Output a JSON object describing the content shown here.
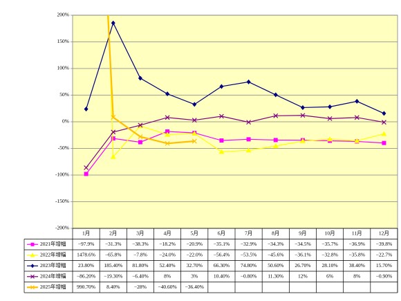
{
  "chart_data": {
    "type": "line",
    "categories": [
      "1月",
      "2月",
      "3月",
      "4月",
      "5月",
      "6月",
      "7月",
      "8月",
      "9月",
      "10月",
      "11月",
      "12月"
    ],
    "ylim": [
      -200,
      200
    ],
    "yticks": [
      {
        "value": -200,
        "label": "-200%"
      },
      {
        "value": -150,
        "label": "-150%"
      },
      {
        "value": -100,
        "label": "-100%"
      },
      {
        "value": -50,
        "label": "-50%"
      },
      {
        "value": 0,
        "label": "0%"
      },
      {
        "value": 50,
        "label": "50%"
      },
      {
        "value": 100,
        "label": "100%"
      },
      {
        "value": 150,
        "label": "150%"
      },
      {
        "value": 200,
        "label": "200%"
      }
    ],
    "grid": true,
    "series": [
      {
        "name": "2021年增幅",
        "color": "#ff00ff",
        "marker": "square",
        "values": [
          -97.9,
          -31.3,
          -38.3,
          -18.2,
          -20.9,
          -35.1,
          -32.9,
          -34.3,
          -34.5,
          -35.7,
          -36.9,
          -39.8
        ],
        "value_labels": [
          "−97.9%",
          "−31.3%",
          "−38.3%",
          "−18.2%",
          "−20.9%",
          "−35.1%",
          "−32.9%",
          "−34.3%",
          "−34.5%",
          "−35.7%",
          "−36.9%",
          "−39.8%"
        ]
      },
      {
        "name": "2022年增幅",
        "color": "#ffff00",
        "marker": "triangle",
        "values": [
          1478.6,
          -65.8,
          -7.8,
          -24.0,
          -22.0,
          -56.4,
          -53.5,
          -45.6,
          -36.1,
          -32.8,
          -35.8,
          -22.7
        ],
        "value_labels": [
          "1478.6%",
          "−65.8%",
          "−7.8%",
          "−24.0%",
          "−22.0%",
          "−56.4%",
          "−53.5%",
          "−45.6%",
          "−36.1%",
          "−32.8%",
          "−35.8%",
          "−22.7%"
        ]
      },
      {
        "name": "2023年增幅",
        "color": "#000080",
        "marker": "diamond",
        "values": [
          23.8,
          185.4,
          81.8,
          52.4,
          32.7,
          66.3,
          74.8,
          50.6,
          26.7,
          28.1,
          38.4,
          15.7
        ],
        "value_labels": [
          "23.80%",
          "185.40%",
          "81.80%",
          "52.40%",
          "32.70%",
          "66.30%",
          "74.80%",
          "50.60%",
          "26.70%",
          "28.10%",
          "38.40%",
          "15.70%"
        ]
      },
      {
        "name": "2024年增幅",
        "color": "#800080",
        "marker": "x",
        "values": [
          -86.2,
          -19.3,
          -6.4,
          8,
          3,
          10.4,
          -0.8,
          11.3,
          12,
          6,
          8,
          -0.9
        ],
        "value_labels": [
          "−86.20%",
          "−19.30%",
          "−6.40%",
          "8%",
          "3%",
          "10.40%",
          "−0.80%",
          "11.30%",
          "12%",
          "6%",
          "8%",
          "−0.90%"
        ]
      },
      {
        "name": "2025年增幅",
        "color": "#ffc000",
        "marker": "x",
        "values": [
          990.7,
          8.4,
          -28,
          -40.6,
          -36.4,
          null,
          null,
          null,
          null,
          null,
          null,
          null
        ],
        "value_labels": [
          "990.70%",
          "8.40%",
          "−28%",
          "−40.60%",
          "−36.40%",
          null,
          null,
          null,
          null,
          null,
          null,
          null
        ]
      }
    ]
  }
}
